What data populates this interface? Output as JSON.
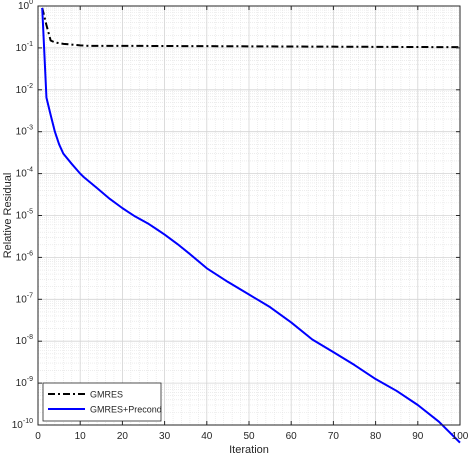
{
  "chart_data": {
    "type": "line",
    "title": "",
    "xlabel": "Iteration",
    "ylabel": "Relative Residual",
    "xlim": [
      0,
      100
    ],
    "ylim": [
      1e-10,
      1
    ],
    "yscale": "log",
    "grid": true,
    "minor_grid": true,
    "legend_position": "bottom-left",
    "x_ticks": [
      "0",
      "10",
      "20",
      "30",
      "40",
      "50",
      "60",
      "70",
      "80",
      "90",
      "100"
    ],
    "y_ticks": [
      {
        "base": "10",
        "exp": "0"
      },
      {
        "base": "10",
        "exp": "-1"
      },
      {
        "base": "10",
        "exp": "-2"
      },
      {
        "base": "10",
        "exp": "-3"
      },
      {
        "base": "10",
        "exp": "-4"
      },
      {
        "base": "10",
        "exp": "-5"
      },
      {
        "base": "10",
        "exp": "-6"
      },
      {
        "base": "10",
        "exp": "-7"
      },
      {
        "base": "10",
        "exp": "-8"
      },
      {
        "base": "10",
        "exp": "-9"
      },
      {
        "base": "10",
        "exp": "-10"
      }
    ],
    "series": [
      {
        "name": "GMRES",
        "color": "#000000",
        "style": "dash-dot",
        "x": [
          1,
          2,
          3,
          4,
          5,
          6,
          8,
          10,
          12,
          20,
          30,
          40,
          50,
          60,
          70,
          80,
          90,
          100
        ],
        "y": [
          0.9,
          0.35,
          0.15,
          0.135,
          0.13,
          0.125,
          0.12,
          0.115,
          0.112,
          0.112,
          0.111,
          0.11,
          0.109,
          0.108,
          0.107,
          0.106,
          0.105,
          0.104
        ]
      },
      {
        "name": "GMRES+Precond",
        "color": "#0000ff",
        "style": "solid",
        "x": [
          1,
          2,
          3,
          4,
          5,
          6,
          8,
          10,
          11,
          14,
          17,
          20,
          23,
          26,
          28,
          30,
          33,
          36,
          40,
          45,
          50,
          55,
          60,
          65,
          70,
          75,
          80,
          85,
          90,
          95,
          100
        ],
        "y": [
          0.9,
          0.0065,
          0.0025,
          0.001,
          0.0005,
          0.0003,
          0.00017,
          0.0001,
          8e-05,
          4.5e-05,
          2.5e-05,
          1.5e-05,
          9.5e-06,
          6.5e-06,
          4.8e-06,
          3.5e-06,
          2.1e-06,
          1.2e-06,
          5.5e-07,
          2.6e-07,
          1.3e-07,
          6.5e-08,
          2.8e-08,
          1.1e-08,
          5.5e-09,
          2.7e-09,
          1.25e-09,
          6.5e-10,
          3e-10,
          1.2e-10,
          3.8e-11
        ]
      }
    ]
  }
}
